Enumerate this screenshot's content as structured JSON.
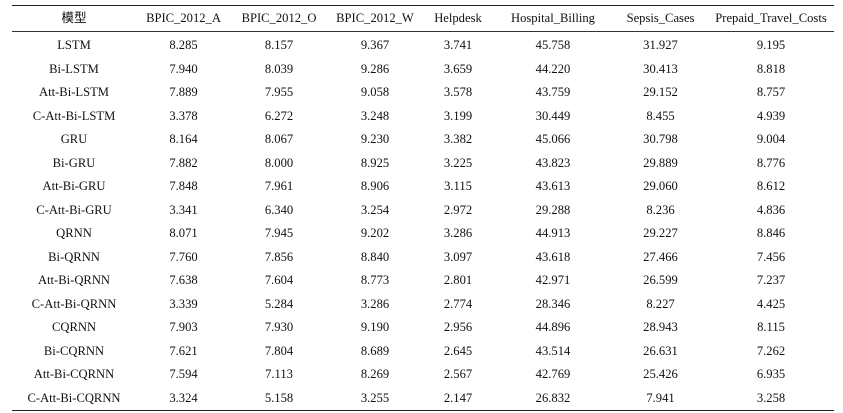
{
  "table": {
    "headers": [
      "模型",
      "BPIC_2012_A",
      "BPIC_2012_O",
      "BPIC_2012_W",
      "Helpdesk",
      "Hospital_Billing",
      "Sepsis_Cases",
      "Prepaid_Travel_Costs"
    ],
    "rows": [
      [
        "LSTM",
        "8.285",
        "8.157",
        "9.367",
        "3.741",
        "45.758",
        "31.927",
        "9.195"
      ],
      [
        "Bi-LSTM",
        "7.940",
        "8.039",
        "9.286",
        "3.659",
        "44.220",
        "30.413",
        "8.818"
      ],
      [
        "Att-Bi-LSTM",
        "7.889",
        "7.955",
        "9.058",
        "3.578",
        "43.759",
        "29.152",
        "8.757"
      ],
      [
        "C-Att-Bi-LSTM",
        "3.378",
        "6.272",
        "3.248",
        "3.199",
        "30.449",
        "8.455",
        "4.939"
      ],
      [
        "GRU",
        "8.164",
        "8.067",
        "9.230",
        "3.382",
        "45.066",
        "30.798",
        "9.004"
      ],
      [
        "Bi-GRU",
        "7.882",
        "8.000",
        "8.925",
        "3.225",
        "43.823",
        "29.889",
        "8.776"
      ],
      [
        "Att-Bi-GRU",
        "7.848",
        "7.961",
        "8.906",
        "3.115",
        "43.613",
        "29.060",
        "8.612"
      ],
      [
        "C-Att-Bi-GRU",
        "3.341",
        "6.340",
        "3.254",
        "2.972",
        "29.288",
        "8.236",
        "4.836"
      ],
      [
        "QRNN",
        "8.071",
        "7.945",
        "9.202",
        "3.286",
        "44.913",
        "29.227",
        "8.846"
      ],
      [
        "Bi-QRNN",
        "7.760",
        "7.856",
        "8.840",
        "3.097",
        "43.618",
        "27.466",
        "7.456"
      ],
      [
        "Att-Bi-QRNN",
        "7.638",
        "7.604",
        "8.773",
        "2.801",
        "42.971",
        "26.599",
        "7.237"
      ],
      [
        "C-Att-Bi-QRNN",
        "3.339",
        "5.284",
        "3.286",
        "2.774",
        "28.346",
        "8.227",
        "4.425"
      ],
      [
        "CQRNN",
        "7.903",
        "7.930",
        "9.190",
        "2.956",
        "44.896",
        "28.943",
        "8.115"
      ],
      [
        "Bi-CQRNN",
        "7.621",
        "7.804",
        "8.689",
        "2.645",
        "43.514",
        "26.631",
        "7.262"
      ],
      [
        "Att-Bi-CQRNN",
        "7.594",
        "7.113",
        "8.269",
        "2.567",
        "42.769",
        "25.426",
        "6.935"
      ],
      [
        "C-Att-Bi-CQRNN",
        "3.324",
        "5.158",
        "3.255",
        "2.147",
        "26.832",
        "7.941",
        "3.258"
      ]
    ]
  }
}
